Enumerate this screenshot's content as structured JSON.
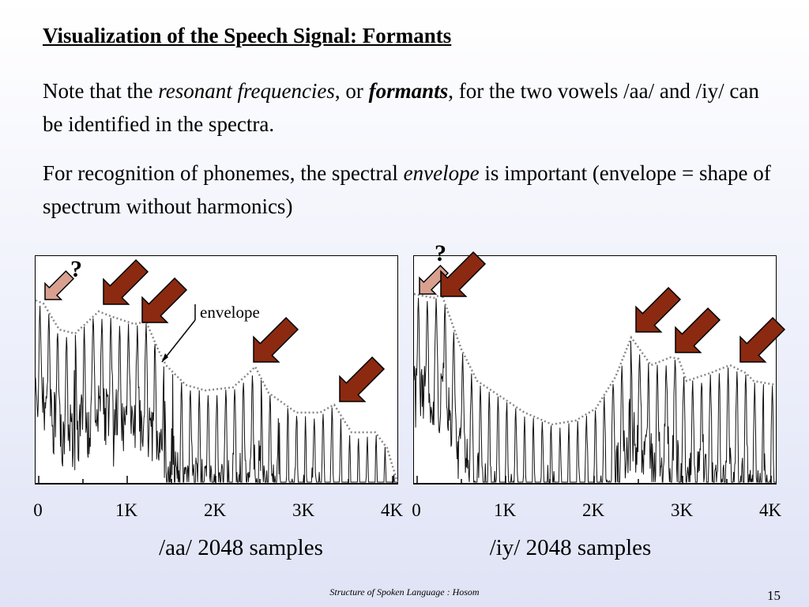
{
  "slide": {
    "title": "Visualization of the Speech Signal: Formants",
    "para1": {
      "t1": "Note that the ",
      "t2": "resonant frequencies",
      "t3": ", or ",
      "t4": "formants",
      "t5": ", for the two vowels /aa/ and /iy/ can be identified in the spectra."
    },
    "para2": {
      "t1": "For recognition of phonemes, the spectral ",
      "t2": "envelope",
      "t3": " is important (envelope = shape of spectrum without harmonics)"
    },
    "footer": "Structure of Spoken Language : Hosom",
    "page_number": "15"
  },
  "colors": {
    "arrow_fill": "#8b2a10",
    "question_arrow_fill": "#d9a090",
    "envelope_stroke": "#888888"
  },
  "chart_data": [
    {
      "type": "line",
      "caption": "/aa/ 2048 samples",
      "x_tick_labels": [
        "0",
        "1K",
        "2K",
        "3K",
        "4K"
      ],
      "annotation_label": "envelope",
      "question_mark": "?",
      "formant_peaks_hz": [
        680,
        1150,
        2450,
        3350
      ]
    },
    {
      "type": "line",
      "caption": "/iy/ 2048 samples",
      "x_tick_labels": [
        "0",
        "1K",
        "2K",
        "3K",
        "4K"
      ],
      "question_mark": "?",
      "formant_peaks_hz": [
        250,
        2450,
        2850,
        3550
      ]
    }
  ]
}
